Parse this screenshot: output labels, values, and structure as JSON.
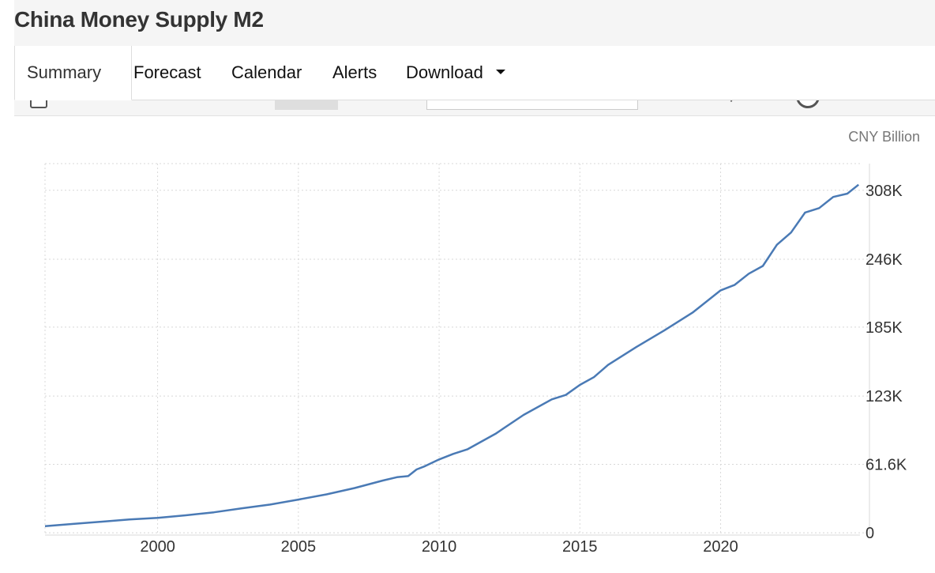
{
  "header": {
    "title": "China Money Supply M2"
  },
  "tabs": [
    {
      "label": "Summary",
      "active": true
    },
    {
      "label": "Forecast"
    },
    {
      "label": "Calendar"
    },
    {
      "label": "Alerts"
    },
    {
      "label": "Download",
      "dropdown": true
    }
  ],
  "colors": {
    "line": "#4a7ab5",
    "grid": "#d8d8d8",
    "axis_text": "#333333",
    "unit_text": "#777777"
  },
  "chart_data": {
    "type": "line",
    "title": "",
    "unit": "CNY Billion",
    "xlim": [
      1996,
      2024.95
    ],
    "ylim": [
      -2000,
      332000
    ],
    "y_ticks": [
      0,
      61600,
      123000,
      185000,
      246000,
      308000
    ],
    "y_tick_labels": [
      "0",
      "61.6K",
      "123K",
      "185K",
      "246K",
      "308K"
    ],
    "x_ticks": [
      2000,
      2005,
      2010,
      2015,
      2020
    ],
    "x_tick_labels": [
      "2000",
      "2005",
      "2010",
      "2015",
      "2020"
    ],
    "grid": true,
    "series": [
      {
        "name": "",
        "x": [
          1996,
          1997,
          1998,
          1999,
          2000,
          2001,
          2002,
          2003,
          2004,
          2005,
          2006,
          2007,
          2008,
          2008.5,
          2008.9,
          2009.2,
          2009.5,
          2010,
          2010.5,
          2011,
          2012,
          2013,
          2014,
          2014.5,
          2015,
          2015.5,
          2016,
          2017,
          2018,
          2019,
          2020,
          2020.5,
          2021,
          2021.5,
          2022,
          2022.5,
          2023,
          2023.5,
          2024,
          2024.5,
          2024.9
        ],
        "y": [
          6000,
          8000,
          10000,
          12000,
          13500,
          15800,
          18500,
          22100,
          25400,
          29900,
          34600,
          40300,
          47000,
          50000,
          51000,
          57000,
          60000,
          66000,
          71000,
          75000,
          89000,
          106000,
          120000,
          124000,
          133000,
          140000,
          151000,
          167000,
          182000,
          198000,
          218000,
          223000,
          233000,
          240000,
          259000,
          270000,
          288000,
          292000,
          302000,
          305000,
          313000
        ]
      }
    ]
  }
}
